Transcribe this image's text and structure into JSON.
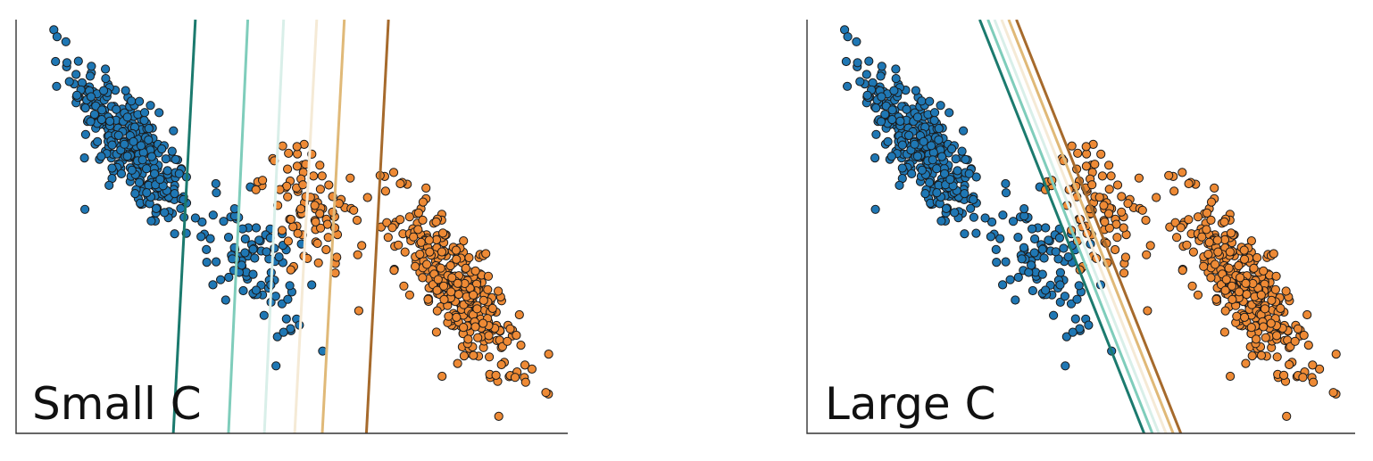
{
  "colors": {
    "blue": "#1f77b4",
    "orange": "#ee8a35",
    "point_edge": "#1a1a1a",
    "axis": "#333333",
    "boundary_palette": [
      "#1b7a6e",
      "#7fcdbb",
      "#d9efe9",
      "#f5ead6",
      "#e0b978",
      "#a66a2c"
    ]
  },
  "chart_data": [
    {
      "type": "scatter",
      "title": "",
      "panel_label": "Small C",
      "xlabel": "",
      "ylabel": "",
      "xlim": [
        0,
        10
      ],
      "ylim": [
        0,
        10
      ],
      "grid": false,
      "legend": "none",
      "clusters": [
        {
          "class": "blue",
          "center": [
            2.1,
            6.9
          ],
          "sx": 0.55,
          "sy": 1.05,
          "rho": -0.78,
          "n": 330
        },
        {
          "class": "blue",
          "center": [
            4.3,
            4.1
          ],
          "sx": 0.45,
          "sy": 0.85,
          "rho": -0.55,
          "n": 90
        },
        {
          "class": "orange",
          "center": [
            5.4,
            5.3
          ],
          "sx": 0.45,
          "sy": 0.85,
          "rho": -0.55,
          "n": 90
        },
        {
          "class": "orange",
          "center": [
            8.0,
            3.5
          ],
          "sx": 0.55,
          "sy": 1.05,
          "rho": -0.78,
          "n": 330
        }
      ],
      "decision_boundaries": [
        {
          "color": "#1b7a6e",
          "top": [
            3.25,
            10
          ],
          "bottom": [
            2.85,
            0
          ]
        },
        {
          "color": "#7fcdbb",
          "top": [
            4.2,
            10
          ],
          "bottom": [
            3.85,
            0
          ]
        },
        {
          "color": "#d9efe9",
          "top": [
            4.85,
            10
          ],
          "bottom": [
            4.5,
            0
          ]
        },
        {
          "color": "#f5ead6",
          "top": [
            5.45,
            10
          ],
          "bottom": [
            5.05,
            0
          ]
        },
        {
          "color": "#e0b978",
          "top": [
            5.95,
            10
          ],
          "bottom": [
            5.55,
            0
          ]
        },
        {
          "color": "#a66a2c",
          "top": [
            6.75,
            10
          ],
          "bottom": [
            6.35,
            0
          ]
        }
      ]
    },
    {
      "type": "scatter",
      "title": "",
      "panel_label": "Large C",
      "xlabel": "",
      "ylabel": "",
      "xlim": [
        0,
        10
      ],
      "ylim": [
        0,
        10
      ],
      "grid": false,
      "legend": "none",
      "clusters": [
        {
          "class": "blue",
          "center": [
            2.1,
            6.9
          ],
          "sx": 0.55,
          "sy": 1.05,
          "rho": -0.78,
          "n": 330
        },
        {
          "class": "blue",
          "center": [
            4.3,
            4.1
          ],
          "sx": 0.45,
          "sy": 0.85,
          "rho": -0.55,
          "n": 90
        },
        {
          "class": "orange",
          "center": [
            5.4,
            5.3
          ],
          "sx": 0.45,
          "sy": 0.85,
          "rho": -0.55,
          "n": 90
        },
        {
          "class": "orange",
          "center": [
            8.0,
            3.5
          ],
          "sx": 0.55,
          "sy": 1.05,
          "rho": -0.78,
          "n": 330
        }
      ],
      "decision_boundaries": [
        {
          "color": "#1b7a6e",
          "top": [
            3.15,
            10
          ],
          "bottom": [
            6.15,
            0
          ]
        },
        {
          "color": "#7fcdbb",
          "top": [
            3.3,
            10
          ],
          "bottom": [
            6.3,
            0
          ]
        },
        {
          "color": "#d9efe9",
          "top": [
            3.42,
            10
          ],
          "bottom": [
            6.42,
            0
          ]
        },
        {
          "color": "#f5ead6",
          "top": [
            3.55,
            10
          ],
          "bottom": [
            6.55,
            0
          ]
        },
        {
          "color": "#e0b978",
          "top": [
            3.68,
            10
          ],
          "bottom": [
            6.68,
            0
          ]
        },
        {
          "color": "#a66a2c",
          "top": [
            3.82,
            10
          ],
          "bottom": [
            6.82,
            0
          ]
        }
      ]
    }
  ]
}
